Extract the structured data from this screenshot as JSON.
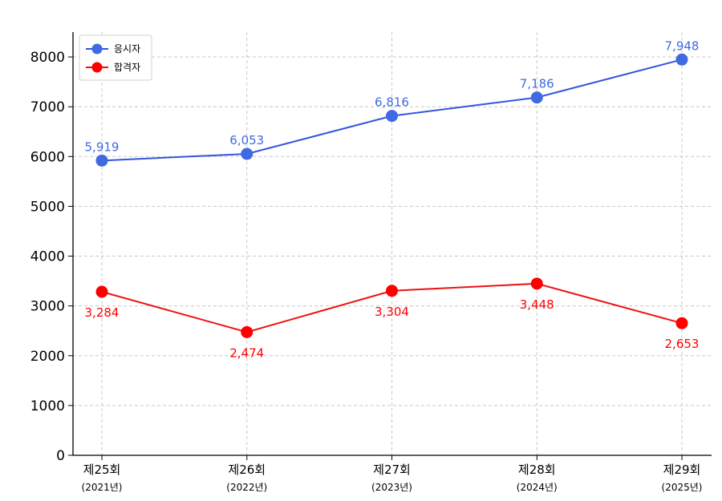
{
  "chart_data": {
    "type": "line",
    "categories": [
      "제25회",
      "제26회",
      "제27회",
      "제28회",
      "제29회"
    ],
    "category_years": [
      "(2021년)",
      "(2022년)",
      "(2023년)",
      "(2024년)",
      "(2025년)"
    ],
    "series": [
      {
        "name": "응시자",
        "color": "#3355dd",
        "marker_color": "#4169e1",
        "values": [
          5919,
          6053,
          6816,
          7186,
          7948
        ],
        "labels": [
          "5,919",
          "6,053",
          "6,816",
          "7,186",
          "7,948"
        ],
        "label_position": "above"
      },
      {
        "name": "합격자",
        "color": "#ee1111",
        "marker_color": "#ff0000",
        "values": [
          3284,
          2474,
          3304,
          3448,
          2653
        ],
        "labels": [
          "3,284",
          "2,474",
          "3,304",
          "3,448",
          "2,653"
        ],
        "label_position": "below"
      }
    ],
    "yticks": [
      0,
      1000,
      2000,
      3000,
      4000,
      5000,
      6000,
      7000,
      8000
    ],
    "ylim": [
      0,
      8500
    ],
    "grid": true,
    "legend_position": "top-left"
  }
}
